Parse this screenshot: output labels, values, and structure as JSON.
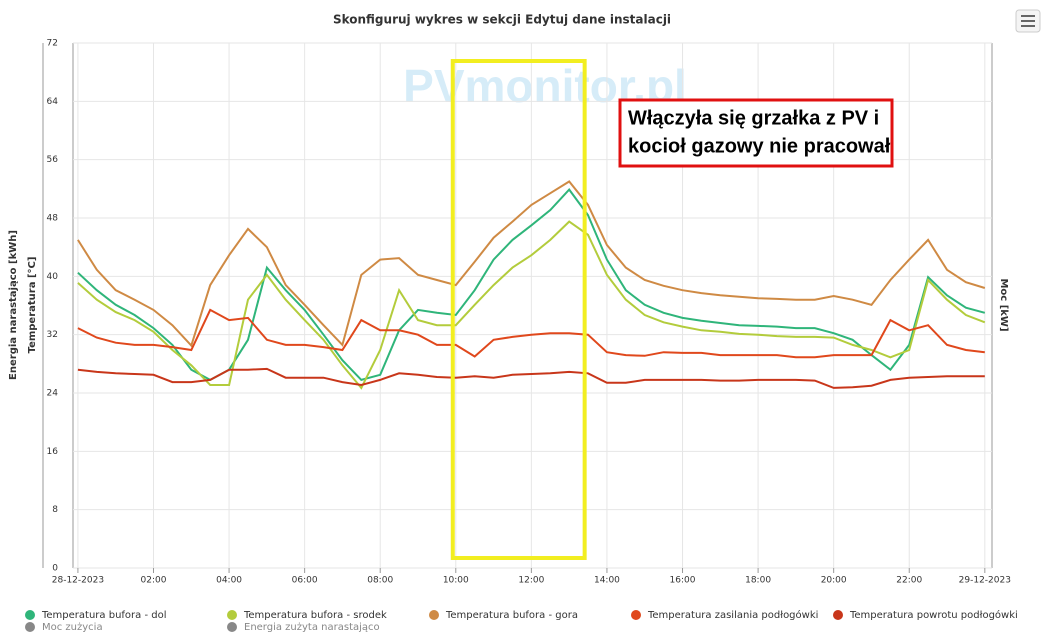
{
  "chart_data": {
    "type": "line",
    "title": "Skonfiguruj wykres w sekcji Edytuj dane instalacji",
    "watermark": "PVmonitor.pl",
    "y_labels": [
      "Energia narastająco [kWh]",
      "Temperatura [°C]"
    ],
    "y2_label": "Moc [kW]",
    "annotation": [
      "Włączyła się grzałka z PV i",
      "kocioł gazowy nie pracował"
    ],
    "highlight_xrange": [
      9.92,
      13.41
    ],
    "grid": true,
    "xlim": [
      -0.13,
      24.19
    ],
    "ylim": [
      0,
      72
    ],
    "yticks": [
      0,
      8,
      16,
      24,
      32,
      40,
      48,
      56,
      64,
      72
    ],
    "xticks": [
      {
        "value": 0,
        "label": "28-12-2023"
      },
      {
        "value": 2,
        "label": "02:00"
      },
      {
        "value": 4,
        "label": "04:00"
      },
      {
        "value": 6,
        "label": "06:00"
      },
      {
        "value": 8,
        "label": "08:00"
      },
      {
        "value": 10,
        "label": "10:00"
      },
      {
        "value": 12,
        "label": "12:00"
      },
      {
        "value": 14,
        "label": "14:00"
      },
      {
        "value": 16,
        "label": "16:00"
      },
      {
        "value": 18,
        "label": "18:00"
      },
      {
        "value": 20,
        "label": "20:00"
      },
      {
        "value": 22,
        "label": "22:00"
      },
      {
        "value": 24,
        "label": "29-12-2023"
      }
    ],
    "x": [
      0,
      0.5,
      1,
      1.5,
      2,
      2.5,
      3,
      3.5,
      4,
      4.5,
      5,
      5.5,
      6,
      6.5,
      7,
      7.5,
      8,
      8.5,
      9,
      9.5,
      10,
      10.5,
      11,
      11.5,
      12,
      12.5,
      13,
      13.5,
      14,
      14.5,
      15,
      15.5,
      16,
      16.5,
      17,
      17.5,
      18,
      18.5,
      19,
      19.5,
      20,
      20.5,
      21,
      21.5,
      22,
      22.5,
      23,
      23.5,
      24
    ],
    "series": [
      {
        "name": "Temperatura bufora - dol",
        "color": "#2fb57a",
        "values": [
          40.5,
          38.1,
          36.1,
          34.7,
          32.9,
          30.6,
          27.2,
          25.8,
          27.2,
          31.3,
          41.2,
          38.1,
          35.4,
          32,
          28.5,
          25.8,
          26.5,
          32.6,
          35.4,
          35,
          34.7,
          38.1,
          42.3,
          45,
          47,
          49.1,
          51.9,
          48.4,
          42.3,
          38.1,
          36.1,
          35,
          34.3,
          33.9,
          33.6,
          33.3,
          33.2,
          33.1,
          32.9,
          32.9,
          32.2,
          31.3,
          29.2,
          27.2,
          30.6,
          39.9,
          37.4,
          35.7,
          35
        ]
      },
      {
        "name": "Temperatura bufora - srodek",
        "color": "#b3cc3c",
        "values": [
          39.1,
          36.8,
          35.1,
          34,
          32.4,
          29.9,
          27.8,
          25.1,
          25.1,
          36.8,
          40.2,
          36.8,
          34,
          31.3,
          27.8,
          24.7,
          29.9,
          38.1,
          34,
          33.3,
          33.3,
          36.1,
          38.8,
          41.2,
          42.9,
          45,
          47.5,
          45.7,
          40.2,
          36.8,
          34.7,
          33.7,
          33.1,
          32.6,
          32.4,
          32.1,
          32,
          31.8,
          31.7,
          31.7,
          31.6,
          30.6,
          29.9,
          28.9,
          29.9,
          39.5,
          36.8,
          34.7,
          33.7
        ]
      },
      {
        "name": "Temperatura bufora - gora",
        "color": "#cf8a44",
        "values": [
          45,
          40.9,
          38.1,
          36.8,
          35.4,
          33.3,
          30.5,
          38.8,
          42.9,
          46.5,
          44,
          38.8,
          36.1,
          33.3,
          30.6,
          40.2,
          42.3,
          42.5,
          40.2,
          39.5,
          38.8,
          42,
          45.3,
          47.5,
          49.8,
          51.4,
          53,
          49.8,
          44.3,
          41.2,
          39.5,
          38.7,
          38.1,
          37.7,
          37.4,
          37.2,
          37,
          36.9,
          36.8,
          36.8,
          37.3,
          36.8,
          36.1,
          39.5,
          42.3,
          45,
          40.9,
          39.2,
          38.4
        ]
      },
      {
        "name": "Temperatura zasilania podłogówki",
        "color": "#e0481c",
        "values": [
          32.9,
          31.6,
          30.9,
          30.6,
          30.6,
          30.3,
          29.9,
          35.4,
          34,
          34.3,
          31.3,
          30.6,
          30.6,
          30.3,
          29.9,
          34,
          32.6,
          32.6,
          32,
          30.6,
          30.6,
          29,
          31.3,
          31.7,
          32,
          32.2,
          32.2,
          32,
          29.6,
          29.2,
          29.1,
          29.6,
          29.5,
          29.5,
          29.2,
          29.2,
          29.2,
          29.2,
          28.9,
          28.9,
          29.2,
          29.2,
          29.2,
          34,
          32.6,
          33.3,
          30.6,
          29.9,
          29.6
        ]
      },
      {
        "name": "Temperatura powrotu podłogówki",
        "color": "#c8361a",
        "values": [
          27.2,
          26.9,
          26.7,
          26.6,
          26.5,
          25.5,
          25.5,
          25.8,
          27.2,
          27.2,
          27.3,
          26.1,
          26.1,
          26.1,
          25.5,
          25.1,
          25.8,
          26.7,
          26.5,
          26.2,
          26.1,
          26.3,
          26.1,
          26.5,
          26.6,
          26.7,
          26.9,
          26.7,
          25.4,
          25.4,
          25.8,
          25.8,
          25.8,
          25.8,
          25.7,
          25.7,
          25.8,
          25.8,
          25.8,
          25.7,
          24.7,
          24.8,
          25,
          25.8,
          26.1,
          26.2,
          26.3,
          26.3,
          26.3
        ]
      }
    ],
    "hidden_series": [
      {
        "name": "Moc zużycia",
        "color": "#888888"
      },
      {
        "name": "Energia zużyta narastająco",
        "color": "#888888"
      }
    ]
  }
}
